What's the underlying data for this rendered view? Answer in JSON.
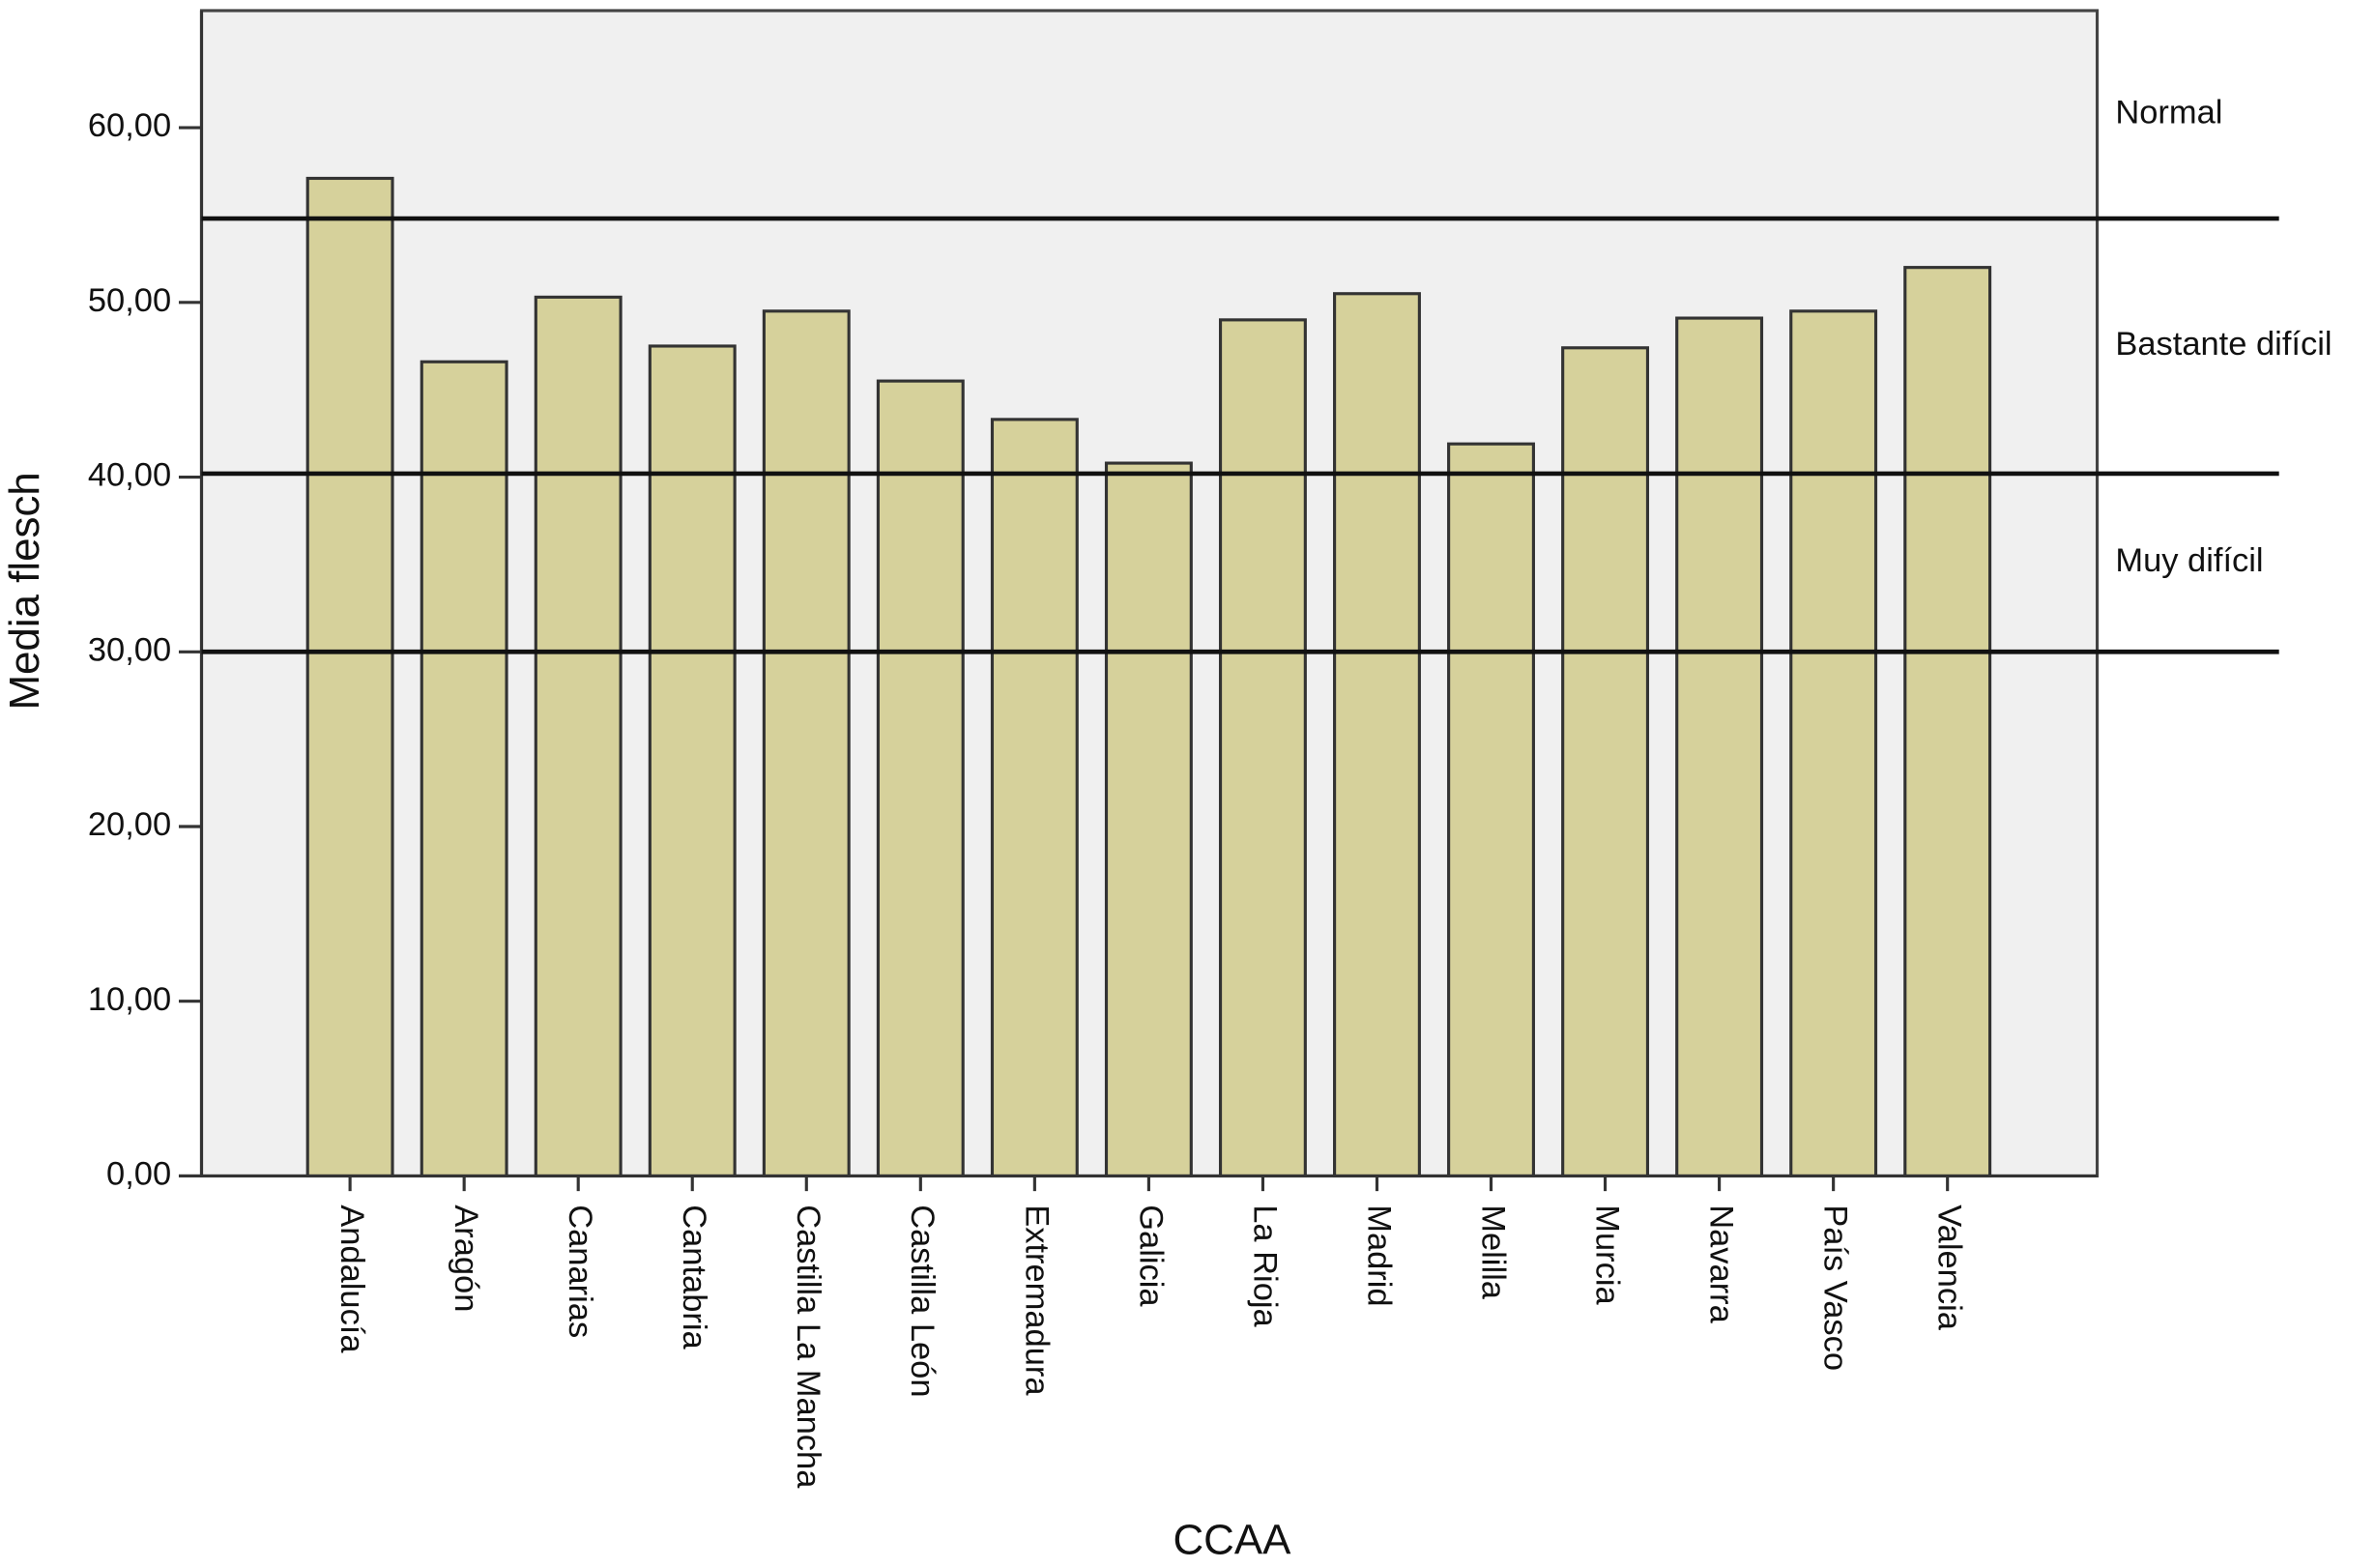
{
  "chart_data": {
    "type": "bar",
    "x_label": "CCAA",
    "y_label": "Media flesch",
    "categories": [
      "Andalucía",
      "Aragón",
      "Canarias",
      "Cantabria",
      "Castilla La Mancha",
      "Castilla León",
      "Extremadura",
      "Galicia",
      "La Rioja",
      "Madrid",
      "Melilla",
      "Murcia",
      "Navarra",
      "País Vasco",
      "Valencia"
    ],
    "values": [
      57.1,
      46.6,
      50.3,
      47.5,
      49.5,
      45.5,
      43.3,
      40.8,
      49.0,
      50.5,
      41.9,
      47.4,
      49.1,
      49.5,
      52.0
    ],
    "color": "#d6d19b",
    "ylim": [
      0,
      66.7
    ],
    "yticks": [
      {
        "value": 0,
        "label": "0,00"
      },
      {
        "value": 10,
        "label": "10,00"
      },
      {
        "value": 20,
        "label": "20,00"
      },
      {
        "value": 30,
        "label": "30,00"
      },
      {
        "value": 40,
        "label": "40,00"
      },
      {
        "value": 50,
        "label": "50,00"
      },
      {
        "value": 60,
        "label": "60,00"
      }
    ],
    "reference_lines": [
      54.8,
      40.2,
      30
    ],
    "zones": [
      "Normal",
      "Bastante difícil",
      "Muy difícil"
    ]
  }
}
